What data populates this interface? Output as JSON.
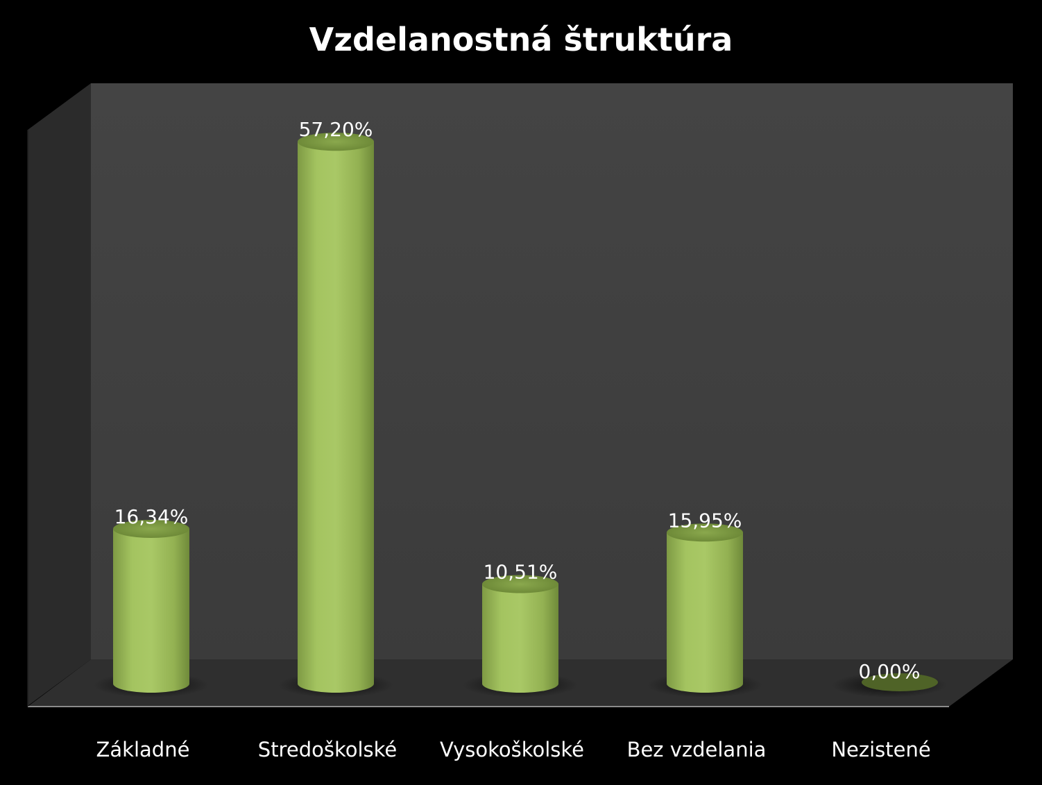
{
  "chart_data": {
    "type": "bar",
    "title": "Vzdelanostná štruktúra",
    "xlabel": "",
    "ylabel": "",
    "categories": [
      "Základné",
      "Stredoškolské",
      "Vysokoškolské",
      "Bez vzdelania",
      "Nezistené"
    ],
    "values": [
      16.34,
      57.2,
      10.51,
      15.95,
      0.0
    ],
    "data_labels": [
      "16,34%",
      "57,20%",
      "10,51%",
      "15,95%",
      "0,00%"
    ],
    "ylim": [
      0,
      60
    ],
    "grid": false,
    "legend": "none",
    "bar_style": "3d-cylinder",
    "colors": {
      "bar": "#9bbb59",
      "background": "#000000",
      "back_wall": "#404040",
      "side_wall": "#2c2c2c",
      "floor": "#303030",
      "text": "#ffffff"
    }
  }
}
